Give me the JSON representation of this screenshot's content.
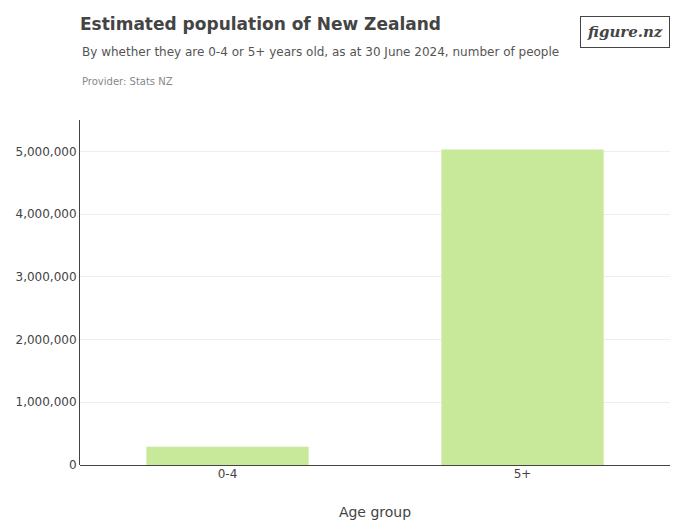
{
  "chart_data": {
    "type": "bar",
    "title": "Estimated population of New Zealand",
    "subtitle": "By whether they are 0-4 or 5+ years old, as at 30 June 2024, number of people",
    "annotations": [
      "Provider: Stats NZ",
      "figure.nz"
    ],
    "xlabel": "Age group",
    "categories": [
      "0-4",
      "5+"
    ],
    "values": [
      290000,
      5030000
    ],
    "color": "#c8e89a",
    "ylim": [
      0,
      5500000
    ],
    "yticks": [
      0,
      {
        "value": 1000000,
        "label": "1,000,000"
      },
      {
        "value": 2000000,
        "label": "2,000,000"
      },
      {
        "value": 3000000,
        "label": "3,000,000"
      },
      {
        "value": 4000000,
        "label": "4,000,000"
      },
      {
        "value": 5000000,
        "label": "5,000,000"
      }
    ],
    "grid": true
  }
}
